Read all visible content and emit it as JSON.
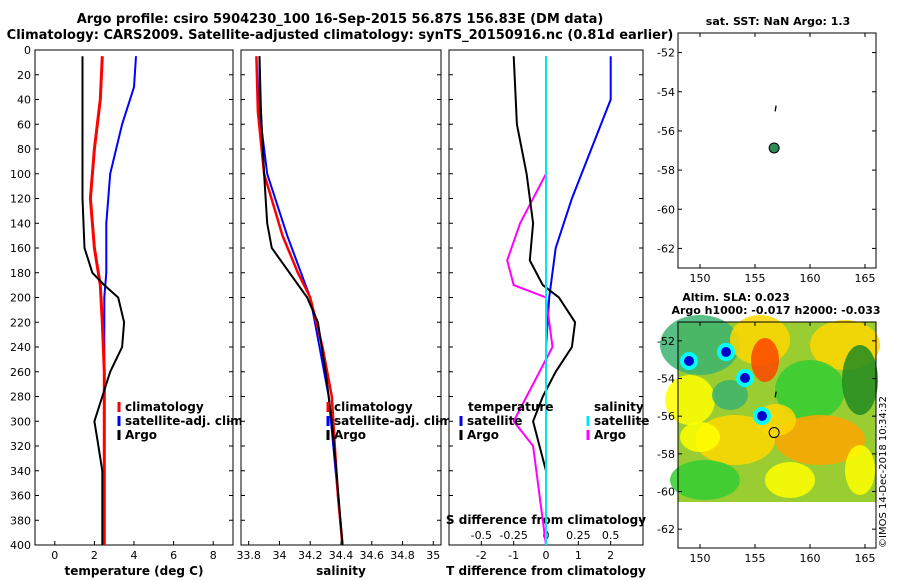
{
  "header": {
    "title_line1": "Argo profile: csiro 5904230_100 16-Sep-2015 56.87S 156.83E (DM data)",
    "title_line2": "Climatology: CARS2009. Satellite-adjusted climatology: synTS_20150916.nc (0.81d earlier)"
  },
  "colors": {
    "argo": "#000000",
    "climatology": "#ff0000",
    "satellite": "#0000ff",
    "sal_diff": "#ff00ff",
    "sat_sal_diff": "#00e5ee",
    "marker": "#2e8b57"
  },
  "chart_data": [
    {
      "type": "line",
      "name": "temperature",
      "xlabel": "temperature (deg C)",
      "ylabel": "depth",
      "xlim": [
        -1,
        9
      ],
      "ylim": [
        0,
        400
      ],
      "xticks": [
        "0",
        "2",
        "4",
        "6",
        "8"
      ],
      "yticks": [
        "0",
        "20",
        "40",
        "60",
        "80",
        "100",
        "120",
        "140",
        "160",
        "180",
        "200",
        "220",
        "240",
        "260",
        "280",
        "300",
        "320",
        "340",
        "360",
        "380",
        "400"
      ],
      "legend": [
        "climatology",
        "satellite-adj. clim.",
        "Argo"
      ],
      "series": [
        {
          "name": "climatology",
          "depth": [
            5,
            40,
            80,
            120,
            160,
            190,
            220,
            260,
            300,
            340,
            400
          ],
          "values": [
            2.4,
            2.3,
            2.0,
            1.8,
            2.0,
            2.3,
            2.4,
            2.5,
            2.5,
            2.5,
            2.5
          ]
        },
        {
          "name": "satellite-adj. clim.",
          "depth": [
            5,
            30,
            60,
            100,
            140,
            180,
            200,
            260,
            320,
            400
          ],
          "values": [
            4.1,
            4.0,
            3.4,
            2.8,
            2.6,
            2.6,
            2.5,
            2.5,
            2.5,
            2.5
          ]
        },
        {
          "name": "Argo",
          "depth": [
            5,
            60,
            120,
            160,
            180,
            190,
            200,
            220,
            240,
            260,
            280,
            300,
            320,
            340,
            400
          ],
          "values": [
            1.4,
            1.4,
            1.4,
            1.5,
            1.9,
            2.5,
            3.2,
            3.5,
            3.4,
            2.8,
            2.4,
            2.0,
            2.2,
            2.4,
            2.4
          ]
        }
      ]
    },
    {
      "type": "line",
      "name": "salinity",
      "xlabel": "salinity",
      "ylabel": "depth",
      "xlim": [
        33.75,
        35.05
      ],
      "ylim": [
        0,
        400
      ],
      "xticks": [
        "33.8",
        "34",
        "34.2",
        "34.4",
        "34.6",
        "34.8",
        "35"
      ],
      "legend": [
        "climatology",
        "satellite-adj. clim.",
        "Argo"
      ],
      "series": [
        {
          "name": "climatology",
          "depth": [
            5,
            50,
            100,
            150,
            180,
            200,
            240,
            280,
            320,
            360,
            400
          ],
          "values": [
            33.85,
            33.86,
            33.9,
            34.02,
            34.12,
            34.2,
            34.28,
            34.34,
            34.36,
            34.38,
            34.41
          ]
        },
        {
          "name": "satellite-adj. clim.",
          "depth": [
            5,
            50,
            100,
            150,
            200,
            240,
            280,
            320,
            360,
            400
          ],
          "values": [
            33.87,
            33.87,
            33.92,
            34.05,
            34.2,
            34.26,
            34.32,
            34.35,
            34.38,
            34.41
          ]
        },
        {
          "name": "Argo",
          "depth": [
            5,
            50,
            100,
            140,
            160,
            200,
            220,
            260,
            300,
            340,
            400
          ],
          "values": [
            33.87,
            33.88,
            33.9,
            33.92,
            33.95,
            34.18,
            34.25,
            34.3,
            34.34,
            34.37,
            34.41
          ]
        }
      ]
    },
    {
      "type": "line",
      "name": "differences",
      "xlabel": "T difference from climatology",
      "top_label": "S difference from climatology",
      "xlim": [
        -3,
        3
      ],
      "ylim": [
        0,
        400
      ],
      "xticks": [
        "-2",
        "-1",
        "0",
        "1",
        "2"
      ],
      "top_ticks": [
        "-0.5",
        "-0.25",
        "0",
        "0.25",
        "0.5"
      ],
      "legend_headers": [
        "temperature",
        "salinity"
      ],
      "legend_temperature": [
        "satellite",
        "Argo"
      ],
      "legend_salinity": [
        "satellite",
        "Argo"
      ],
      "series": [
        {
          "name": "T satellite",
          "depth": [
            5,
            40,
            80,
            120,
            160,
            200,
            240,
            280,
            320,
            400
          ],
          "values": [
            2.0,
            2.0,
            1.4,
            0.8,
            0.3,
            0.1,
            0.0,
            0.0,
            0.0,
            0.0
          ]
        },
        {
          "name": "T Argo",
          "depth": [
            5,
            60,
            100,
            140,
            170,
            190,
            200,
            220,
            240,
            260,
            280,
            300,
            320,
            340,
            400
          ],
          "values": [
            -1.0,
            -0.9,
            -0.6,
            -0.4,
            -0.5,
            -0.1,
            0.4,
            0.9,
            0.8,
            0.3,
            -0.1,
            -0.4,
            -0.2,
            0.0,
            0.0
          ]
        },
        {
          "name": "S satellite",
          "depth": [
            5,
            100,
            200,
            300,
            400
          ],
          "values": [
            0.0,
            0.0,
            0.0,
            0.0,
            0.0
          ]
        },
        {
          "name": "S Argo",
          "depth": [
            5,
            100,
            140,
            170,
            190,
            200,
            240,
            280,
            300,
            320,
            400
          ],
          "values": [
            0.0,
            0.0,
            -0.2,
            -0.3,
            -0.25,
            0.0,
            0.05,
            -0.15,
            -0.25,
            -0.1,
            0.0
          ]
        }
      ]
    },
    {
      "type": "scatter",
      "name": "sst map",
      "title": "sat. SST: NaN Argo: 1.3",
      "xlim": [
        148,
        166
      ],
      "ylim": [
        -63,
        -51
      ],
      "xticks": [
        "150",
        "155",
        "160",
        "165"
      ],
      "yticks": [
        "-52",
        "-54",
        "-56",
        "-58",
        "-60",
        "-62"
      ],
      "points": [
        {
          "lon": 156.83,
          "lat": -56.87,
          "label": "Argo"
        }
      ]
    },
    {
      "type": "heatmap",
      "name": "altimetry map",
      "title_line1": "Altim. SLA: 0.023",
      "title_line2": "Argo h1000: -0.017 h2000: -0.033",
      "xlim": [
        148,
        166
      ],
      "ylim": [
        -63,
        -51
      ],
      "xticks": [
        "150",
        "155",
        "160",
        "165"
      ],
      "yticks": [
        "-52",
        "-54",
        "-56",
        "-58",
        "-60",
        "-62"
      ],
      "points": [
        {
          "lon": 156.83,
          "lat": -56.87,
          "label": "Argo"
        }
      ]
    }
  ],
  "watermark": "©IMOS 14-Dec-2018 10:34:32"
}
